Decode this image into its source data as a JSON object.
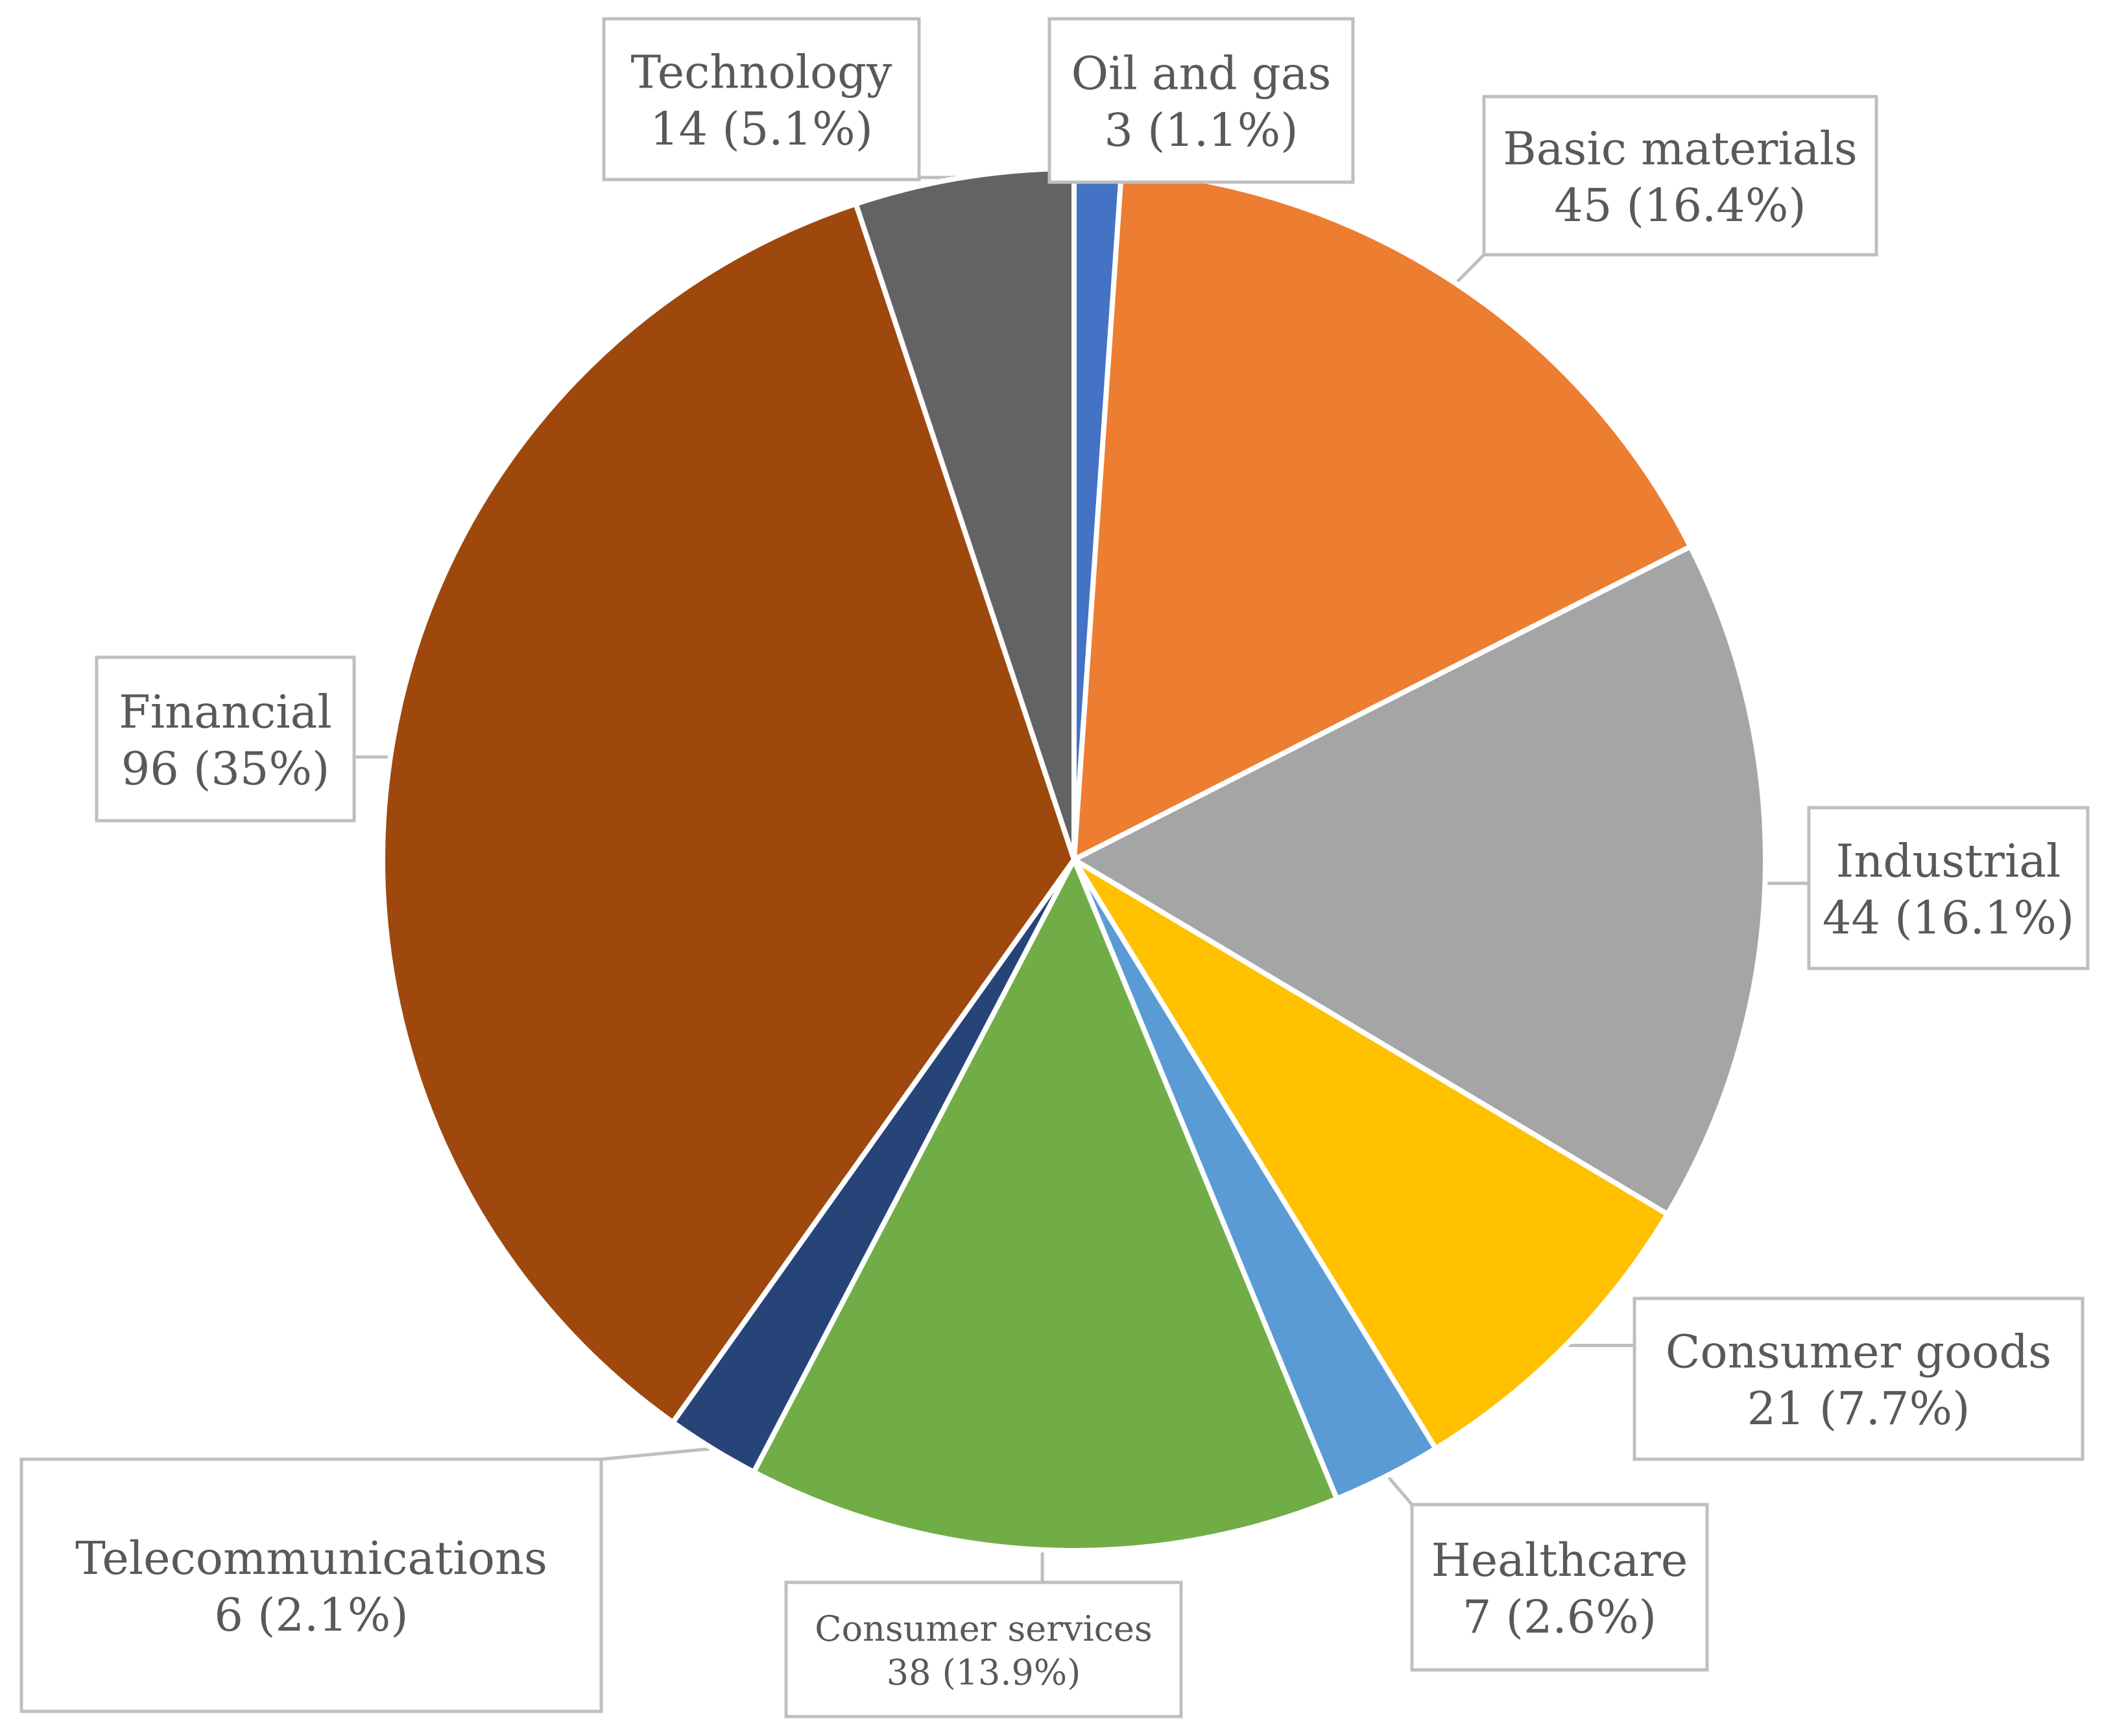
{
  "chart_data": {
    "type": "pie",
    "title": "",
    "start_angle_deg": 0,
    "direction": "clockwise",
    "slices": [
      {
        "name": "Oil and gas",
        "value": 3,
        "percent": 1.1,
        "value_label": "3 (1.1%)",
        "color": "#4472C4"
      },
      {
        "name": "Basic materials",
        "value": 45,
        "percent": 16.4,
        "value_label": "45 (16.4%)",
        "color": "#ED7D31"
      },
      {
        "name": "Industrial",
        "value": 44,
        "percent": 16.1,
        "value_label": "44 (16.1%)",
        "color": "#A5A5A5"
      },
      {
        "name": "Consumer goods",
        "value": 21,
        "percent": 7.7,
        "value_label": "21 (7.7%)",
        "color": "#FFC000"
      },
      {
        "name": "Healthcare",
        "value": 7,
        "percent": 2.6,
        "value_label": "7 (2.6%)",
        "color": "#5B9BD5"
      },
      {
        "name": "Consumer services",
        "value": 38,
        "percent": 13.9,
        "value_label": "38 (13.9%)",
        "color": "#70AD47"
      },
      {
        "name": "Telecommunications",
        "value": 6,
        "percent": 2.1,
        "value_label": "6 (2.1%)",
        "color": "#264478"
      },
      {
        "name": "Financial",
        "value": 96,
        "percent": 35,
        "value_label": "96 (35%)",
        "color": "#9E480E"
      },
      {
        "name": "Technology",
        "value": 14,
        "percent": 5.1,
        "value_label": "14 (5.1%)",
        "color": "#636363"
      }
    ],
    "legend": "none",
    "data_labels": "callouts"
  }
}
